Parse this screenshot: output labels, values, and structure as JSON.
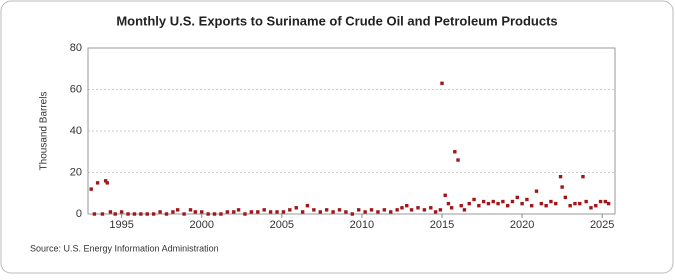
{
  "chart_data": {
    "type": "scatter",
    "title": "Monthly U.S. Exports to Suriname of Crude Oil and Petroleum Products",
    "y_label": "Thousand Barrels",
    "source": "Source: U.S. Energy Information Administration",
    "color": "#a0171b",
    "xlim": [
      1992.9,
      2025.8
    ],
    "xticks": [
      1995,
      2000,
      2005,
      2010,
      2015,
      2020,
      2025
    ],
    "ylim": [
      0,
      80
    ],
    "yticks": [
      0,
      20,
      40,
      60,
      80
    ],
    "grid": true,
    "x": [
      1993.1,
      1993.3,
      1993.5,
      1993.8,
      1994.0,
      1994.1,
      1994.3,
      1994.6,
      1995.0,
      1995.4,
      1995.8,
      1996.2,
      1996.6,
      1997.0,
      1997.4,
      1997.8,
      1998.2,
      1998.5,
      1998.9,
      1999.3,
      1999.6,
      2000.0,
      2000.4,
      2000.8,
      2001.2,
      2001.6,
      2002.0,
      2002.3,
      2002.7,
      2003.1,
      2003.5,
      2003.9,
      2004.3,
      2004.7,
      2005.1,
      2005.5,
      2005.9,
      2006.3,
      2006.6,
      2007.0,
      2007.4,
      2007.8,
      2008.2,
      2008.6,
      2009.0,
      2009.4,
      2009.8,
      2010.2,
      2010.6,
      2011.0,
      2011.4,
      2011.8,
      2012.2,
      2012.5,
      2012.8,
      2013.1,
      2013.5,
      2013.9,
      2014.3,
      2014.6,
      2014.9,
      2015.0,
      2015.2,
      2015.4,
      2015.6,
      2015.8,
      2016.0,
      2016.2,
      2016.4,
      2016.7,
      2017.0,
      2017.3,
      2017.6,
      2017.9,
      2018.2,
      2018.5,
      2018.8,
      2019.1,
      2019.4,
      2019.7,
      2020.0,
      2020.3,
      2020.6,
      2020.9,
      2021.2,
      2021.5,
      2021.8,
      2022.1,
      2022.4,
      2022.5,
      2022.7,
      2023.0,
      2023.3,
      2023.6,
      2023.8,
      2024.0,
      2024.3,
      2024.6,
      2024.9,
      2025.2,
      2025.4
    ],
    "values": [
      12,
      0,
      15,
      0,
      16,
      15,
      1,
      0,
      1,
      0,
      0,
      0,
      0,
      0,
      1,
      0,
      1,
      2,
      0,
      2,
      1,
      1,
      0,
      0,
      0,
      1,
      1,
      2,
      0,
      1,
      1,
      2,
      1,
      1,
      1,
      2,
      3,
      1,
      4,
      2,
      1,
      2,
      1,
      2,
      1,
      0,
      2,
      1,
      2,
      1,
      2,
      1,
      2,
      3,
      4,
      2,
      3,
      2,
      3,
      1,
      2,
      63,
      9,
      5,
      3,
      30,
      26,
      4,
      2,
      5,
      7,
      4,
      6,
      5,
      6,
      5,
      6,
      4,
      6,
      8,
      5,
      7,
      4,
      11,
      5,
      4,
      6,
      5,
      18,
      13,
      8,
      4,
      5,
      5,
      18,
      6,
      3,
      4,
      6,
      6,
      5
    ]
  }
}
